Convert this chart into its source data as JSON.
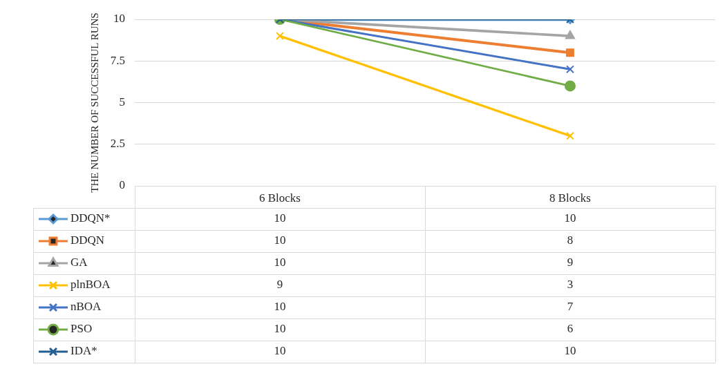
{
  "chart_data": {
    "type": "line",
    "ylabel": "THE NUMBER OF SUCCESSFUL RUNS",
    "categories": [
      "6 Blocks",
      "8 Blocks"
    ],
    "series": [
      {
        "name": "DDQN*",
        "color": "#5b9bd5",
        "marker": "diamond",
        "values": [
          10,
          10
        ]
      },
      {
        "name": "DDQN",
        "color": "#ed7d31",
        "marker": "square",
        "values": [
          10,
          8
        ]
      },
      {
        "name": "GA",
        "color": "#a5a5a5",
        "marker": "triangle",
        "values": [
          10,
          9
        ]
      },
      {
        "name": "plnBOA",
        "color": "#ffc000",
        "marker": "cross",
        "values": [
          9,
          3
        ]
      },
      {
        "name": "nBOA",
        "color": "#4472c4",
        "marker": "cross",
        "values": [
          10,
          7
        ]
      },
      {
        "name": "PSO",
        "color": "#70ad47",
        "marker": "circle",
        "values": [
          10,
          6
        ]
      },
      {
        "name": "IDA*",
        "color": "#255e91",
        "marker": "cross",
        "values": [
          10,
          10
        ]
      }
    ],
    "ylim": [
      0,
      10
    ],
    "yticks": [
      0,
      2.5,
      5,
      7.5,
      10
    ],
    "grid": "y",
    "legend": "bottom left",
    "data_labels": true
  }
}
